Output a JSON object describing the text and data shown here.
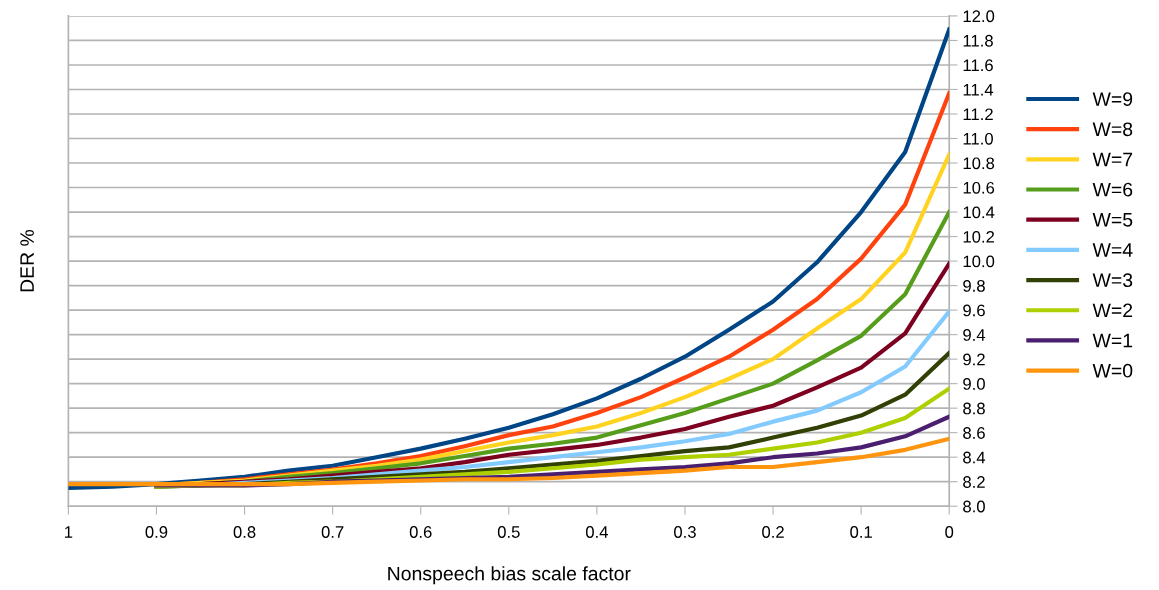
{
  "chart_data": {
    "type": "line",
    "xlabel": "Nonspeech bias scale factor",
    "ylabel": "DER %",
    "x": [
      1,
      0.95,
      0.9,
      0.85,
      0.8,
      0.75,
      0.7,
      0.65,
      0.6,
      0.55,
      0.5,
      0.45,
      0.4,
      0.35,
      0.3,
      0.25,
      0.2,
      0.15,
      0.1,
      0.05,
      0
    ],
    "xlim": [
      1,
      0
    ],
    "xticks": [
      1,
      0.9,
      0.8,
      0.7,
      0.6,
      0.5,
      0.4,
      0.3,
      0.2,
      0.1,
      0
    ],
    "ylim": [
      8,
      12
    ],
    "yticks": [
      {
        "value": 8,
        "label": "8.0"
      },
      {
        "value": 8.2,
        "label": "8.2"
      },
      {
        "value": 8.4,
        "label": "8.4"
      },
      {
        "value": 8.6,
        "label": "8.6"
      },
      {
        "value": 8.8,
        "label": "8.8"
      },
      {
        "value": 9,
        "label": "9.0"
      },
      {
        "value": 9.2,
        "label": "9.2"
      },
      {
        "value": 9.4,
        "label": "9.4"
      },
      {
        "value": 9.6,
        "label": "9.6"
      },
      {
        "value": 9.8,
        "label": "9.8"
      },
      {
        "value": 10,
        "label": "10.0"
      },
      {
        "value": 10.2,
        "label": "10.2"
      },
      {
        "value": 10.4,
        "label": "10.4"
      },
      {
        "value": 10.6,
        "label": "10.6"
      },
      {
        "value": 10.8,
        "label": "10.8"
      },
      {
        "value": 11,
        "label": "11.0"
      },
      {
        "value": 11.2,
        "label": "11.2"
      },
      {
        "value": 11.4,
        "label": "11.4"
      },
      {
        "value": 11.6,
        "label": "11.6"
      },
      {
        "value": 11.8,
        "label": "11.8"
      },
      {
        "value": 12,
        "label": "12.0"
      }
    ],
    "grid": "y",
    "legend": "right",
    "marker": "none",
    "line_style": "solid",
    "series": [
      {
        "name": "W=9",
        "color": "#004586",
        "values": [
          8.15,
          8.16,
          8.18,
          8.21,
          8.24,
          8.29,
          8.33,
          8.4,
          8.47,
          8.55,
          8.64,
          8.75,
          8.88,
          9.04,
          9.22,
          9.44,
          9.67,
          9.99,
          10.4,
          10.89,
          11.89
        ]
      },
      {
        "name": "W=8",
        "color": "#ff420e",
        "values": [
          null,
          null,
          8.17,
          8.19,
          8.22,
          8.26,
          8.3,
          8.35,
          8.41,
          8.49,
          8.58,
          8.65,
          8.76,
          8.89,
          9.05,
          9.22,
          9.44,
          9.69,
          10.02,
          10.46,
          11.37
        ]
      },
      {
        "name": "W=7",
        "color": "#ffd320",
        "values": [
          null,
          null,
          8.17,
          8.19,
          8.21,
          8.25,
          8.29,
          8.33,
          8.38,
          8.45,
          8.52,
          8.58,
          8.65,
          8.76,
          8.89,
          9.04,
          9.2,
          9.45,
          9.69,
          10.07,
          10.87
        ]
      },
      {
        "name": "W=6",
        "color": "#579d1c",
        "values": [
          null,
          null,
          8.17,
          8.18,
          8.2,
          8.24,
          8.27,
          8.31,
          8.35,
          8.41,
          8.47,
          8.51,
          8.56,
          8.66,
          8.76,
          8.88,
          9.0,
          9.19,
          9.39,
          9.73,
          10.4
        ]
      },
      {
        "name": "W=5",
        "color": "#7e0021",
        "values": [
          null,
          null,
          8.16,
          8.18,
          8.2,
          8.22,
          8.25,
          8.28,
          8.31,
          8.36,
          8.42,
          8.46,
          8.5,
          8.56,
          8.63,
          8.73,
          8.82,
          8.97,
          9.13,
          9.41,
          9.98
        ]
      },
      {
        "name": "W=4",
        "color": "#83caff",
        "values": [
          null,
          null,
          8.16,
          8.17,
          8.19,
          8.21,
          8.23,
          8.26,
          8.29,
          8.32,
          8.36,
          8.4,
          8.44,
          8.48,
          8.53,
          8.59,
          8.69,
          8.78,
          8.93,
          9.14,
          9.59
        ]
      },
      {
        "name": "W=3",
        "color": "#314004",
        "values": [
          null,
          null,
          8.16,
          8.17,
          8.18,
          8.2,
          8.22,
          8.24,
          8.26,
          8.28,
          8.31,
          8.34,
          8.37,
          8.41,
          8.45,
          8.48,
          8.56,
          8.64,
          8.74,
          8.91,
          9.25
        ]
      },
      {
        "name": "W=2",
        "color": "#aecf00",
        "values": [
          null,
          null,
          8.16,
          8.17,
          8.17,
          8.19,
          8.2,
          8.22,
          8.24,
          8.26,
          8.28,
          8.31,
          8.34,
          8.38,
          8.4,
          8.42,
          8.47,
          8.52,
          8.6,
          8.72,
          8.96
        ]
      },
      {
        "name": "W=1",
        "color": "#4b1f6f",
        "values": [
          null,
          null,
          8.17,
          8.17,
          8.17,
          8.18,
          8.2,
          8.21,
          8.22,
          8.23,
          8.24,
          8.26,
          8.28,
          8.3,
          8.32,
          8.35,
          8.4,
          8.43,
          8.48,
          8.57,
          8.73
        ]
      },
      {
        "name": "W=0",
        "color": "#ff950e",
        "values": [
          8.18,
          8.18,
          8.18,
          8.18,
          8.18,
          8.18,
          8.19,
          8.2,
          8.21,
          8.22,
          8.22,
          8.23,
          8.25,
          8.27,
          8.29,
          8.32,
          8.32,
          8.36,
          8.4,
          8.46,
          8.55
        ]
      }
    ]
  }
}
